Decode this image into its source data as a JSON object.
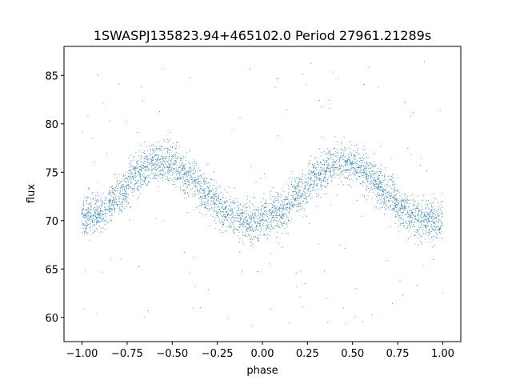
{
  "chart_data": {
    "type": "scatter",
    "title": "1SWASPJ135823.94+465102.0 Period 27961.21289s",
    "xlabel": "phase",
    "ylabel": "flux",
    "xlim": [
      -1.1,
      1.1
    ],
    "ylim": [
      57.5,
      88.0
    ],
    "xticks": [
      -1.0,
      -0.75,
      -0.5,
      -0.25,
      0.0,
      0.25,
      0.5,
      0.75,
      1.0
    ],
    "xtick_labels": [
      "−1.00",
      "−0.75",
      "−0.50",
      "−0.25",
      "0.00",
      "0.25",
      "0.50",
      "0.75",
      "1.00"
    ],
    "yticks": [
      60,
      65,
      70,
      75,
      80,
      85
    ],
    "ytick_labels": [
      "60",
      "65",
      "70",
      "75",
      "80",
      "85"
    ],
    "grid": false,
    "marker_color": "#1f77b4",
    "series": [
      {
        "x_range": [
          -1.0,
          1.0
        ],
        "trend": {
          "phase": [
            -1.0,
            -0.9,
            -0.8,
            -0.7,
            -0.6,
            -0.5,
            -0.4,
            -0.3,
            -0.2,
            -0.1,
            0.0,
            0.1,
            0.2,
            0.3,
            0.4,
            0.5,
            0.6,
            0.7,
            0.8,
            0.9,
            1.0
          ],
          "flux": [
            70.3,
            70.8,
            72.5,
            74.8,
            76.0,
            75.8,
            74.5,
            72.6,
            70.8,
            70.0,
            69.9,
            70.8,
            72.6,
            74.8,
            75.9,
            75.8,
            74.5,
            72.6,
            70.8,
            70.0,
            70.0
          ]
        },
        "scatter_sd": 1.0,
        "outlier_range": [
          59.0,
          86.5
        ]
      }
    ]
  }
}
